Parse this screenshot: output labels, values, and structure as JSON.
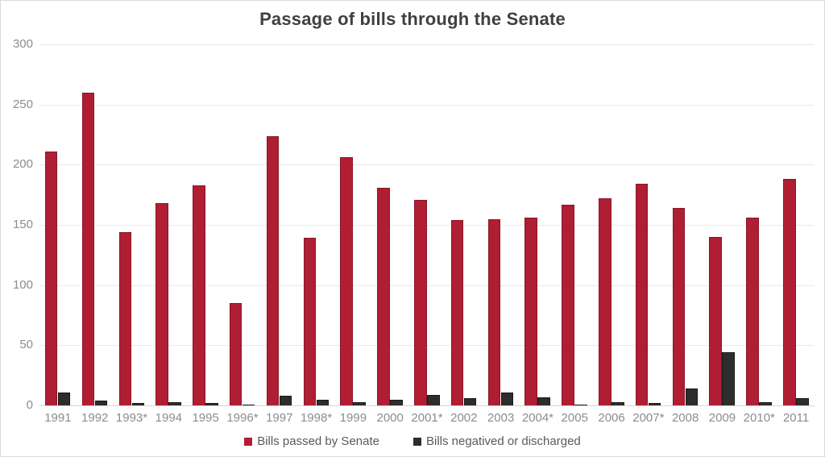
{
  "chart_data": {
    "type": "bar",
    "title": "Passage of bills through the Senate",
    "categories": [
      "1991",
      "1992",
      "1993*",
      "1994",
      "1995",
      "1996*",
      "1997",
      "1998*",
      "1999",
      "2000",
      "2001*",
      "2002",
      "2003",
      "2004*",
      "2005",
      "2006",
      "2007*",
      "2008",
      "2009",
      "2010*",
      "2011"
    ],
    "series": [
      {
        "name": "Bills passed by Senate",
        "color": "#b01e33",
        "border_color": "#8a1626",
        "values": [
          211,
          260,
          144,
          168,
          183,
          85,
          224,
          139,
          206,
          181,
          171,
          154,
          155,
          156,
          167,
          172,
          184,
          164,
          140,
          156,
          188
        ]
      },
      {
        "name": "Bills negatived or discharged",
        "color": "#2e2d2c",
        "border_color": "#191919",
        "values": [
          11,
          4,
          2,
          3,
          2,
          1,
          8,
          5,
          3,
          5,
          9,
          6,
          11,
          7,
          1,
          3,
          2,
          14,
          44,
          3,
          6
        ]
      }
    ],
    "xlabel": "",
    "ylabel": "",
    "ylim": [
      0,
      300
    ],
    "yticks": [
      0,
      50,
      100,
      150,
      200,
      250,
      300
    ],
    "grid": true,
    "legend_position": "bottom"
  },
  "colors": {
    "background": "#ffffff",
    "frame_border": "#d9d9d9",
    "gridline": "#e9e9e9",
    "axis_line": "#d6d6d6",
    "title_text": "#404040",
    "tick_text": "#8c8c8c",
    "legend_text": "#595959",
    "accent_red": "#b01e33",
    "accent_dark": "#2e2d2c"
  }
}
